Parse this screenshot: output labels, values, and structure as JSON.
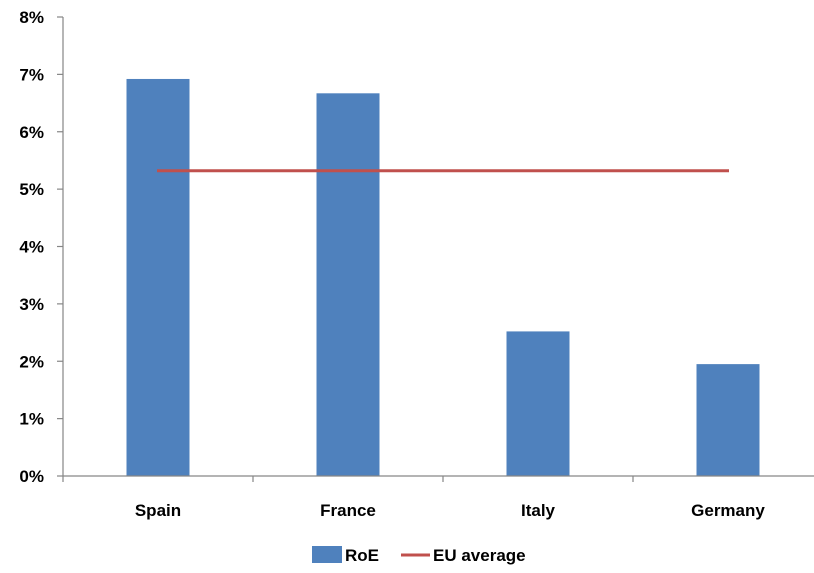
{
  "chart_data": {
    "type": "bar",
    "categories": [
      "Spain",
      "France",
      "Italy",
      "Germany"
    ],
    "series": [
      {
        "name": "RoE",
        "type": "bar",
        "color": "#4F81BD",
        "values": [
          6.92,
          6.67,
          2.52,
          1.95
        ]
      },
      {
        "name": "EU average",
        "type": "line",
        "color": "#C0504D",
        "values": [
          5.32,
          5.32,
          5.32,
          5.32
        ]
      }
    ],
    "ylim": [
      0,
      8
    ],
    "y_ticks": [
      0,
      1,
      2,
      3,
      4,
      5,
      6,
      7,
      8
    ],
    "y_tick_labels": [
      "0%",
      "1%",
      "2%",
      "3%",
      "4%",
      "5%",
      "6%",
      "7%",
      "8%"
    ],
    "grid": false,
    "legend_position": "bottom-center"
  }
}
